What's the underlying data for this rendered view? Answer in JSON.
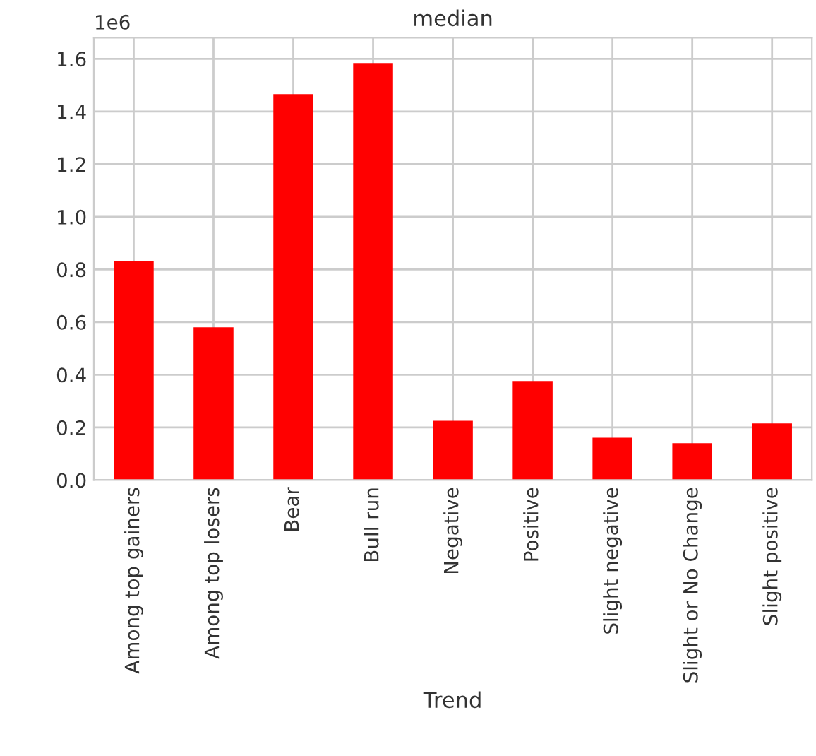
{
  "chart_data": {
    "type": "bar",
    "title": "median",
    "xlabel": "Trend",
    "categories": [
      "Among top gainers",
      "Among top losers",
      "Bear",
      "Bull run",
      "Negative",
      "Positive",
      "Slight negative",
      "Slight or No Change",
      "Slight positive"
    ],
    "values": [
      0.832,
      0.58,
      1.466,
      1.584,
      0.225,
      0.376,
      0.161,
      0.14,
      0.215
    ],
    "color": "#ff0000",
    "ylim": [
      0,
      1.68
    ],
    "yticks": [
      {
        "value": 0,
        "label": "0.0"
      },
      0.2,
      0.4,
      0.6,
      0.8,
      {
        "value": 1,
        "label": "1.0"
      },
      1.2,
      1.4,
      1.6
    ],
    "annotations": [
      "1e6"
    ],
    "grid": true
  }
}
